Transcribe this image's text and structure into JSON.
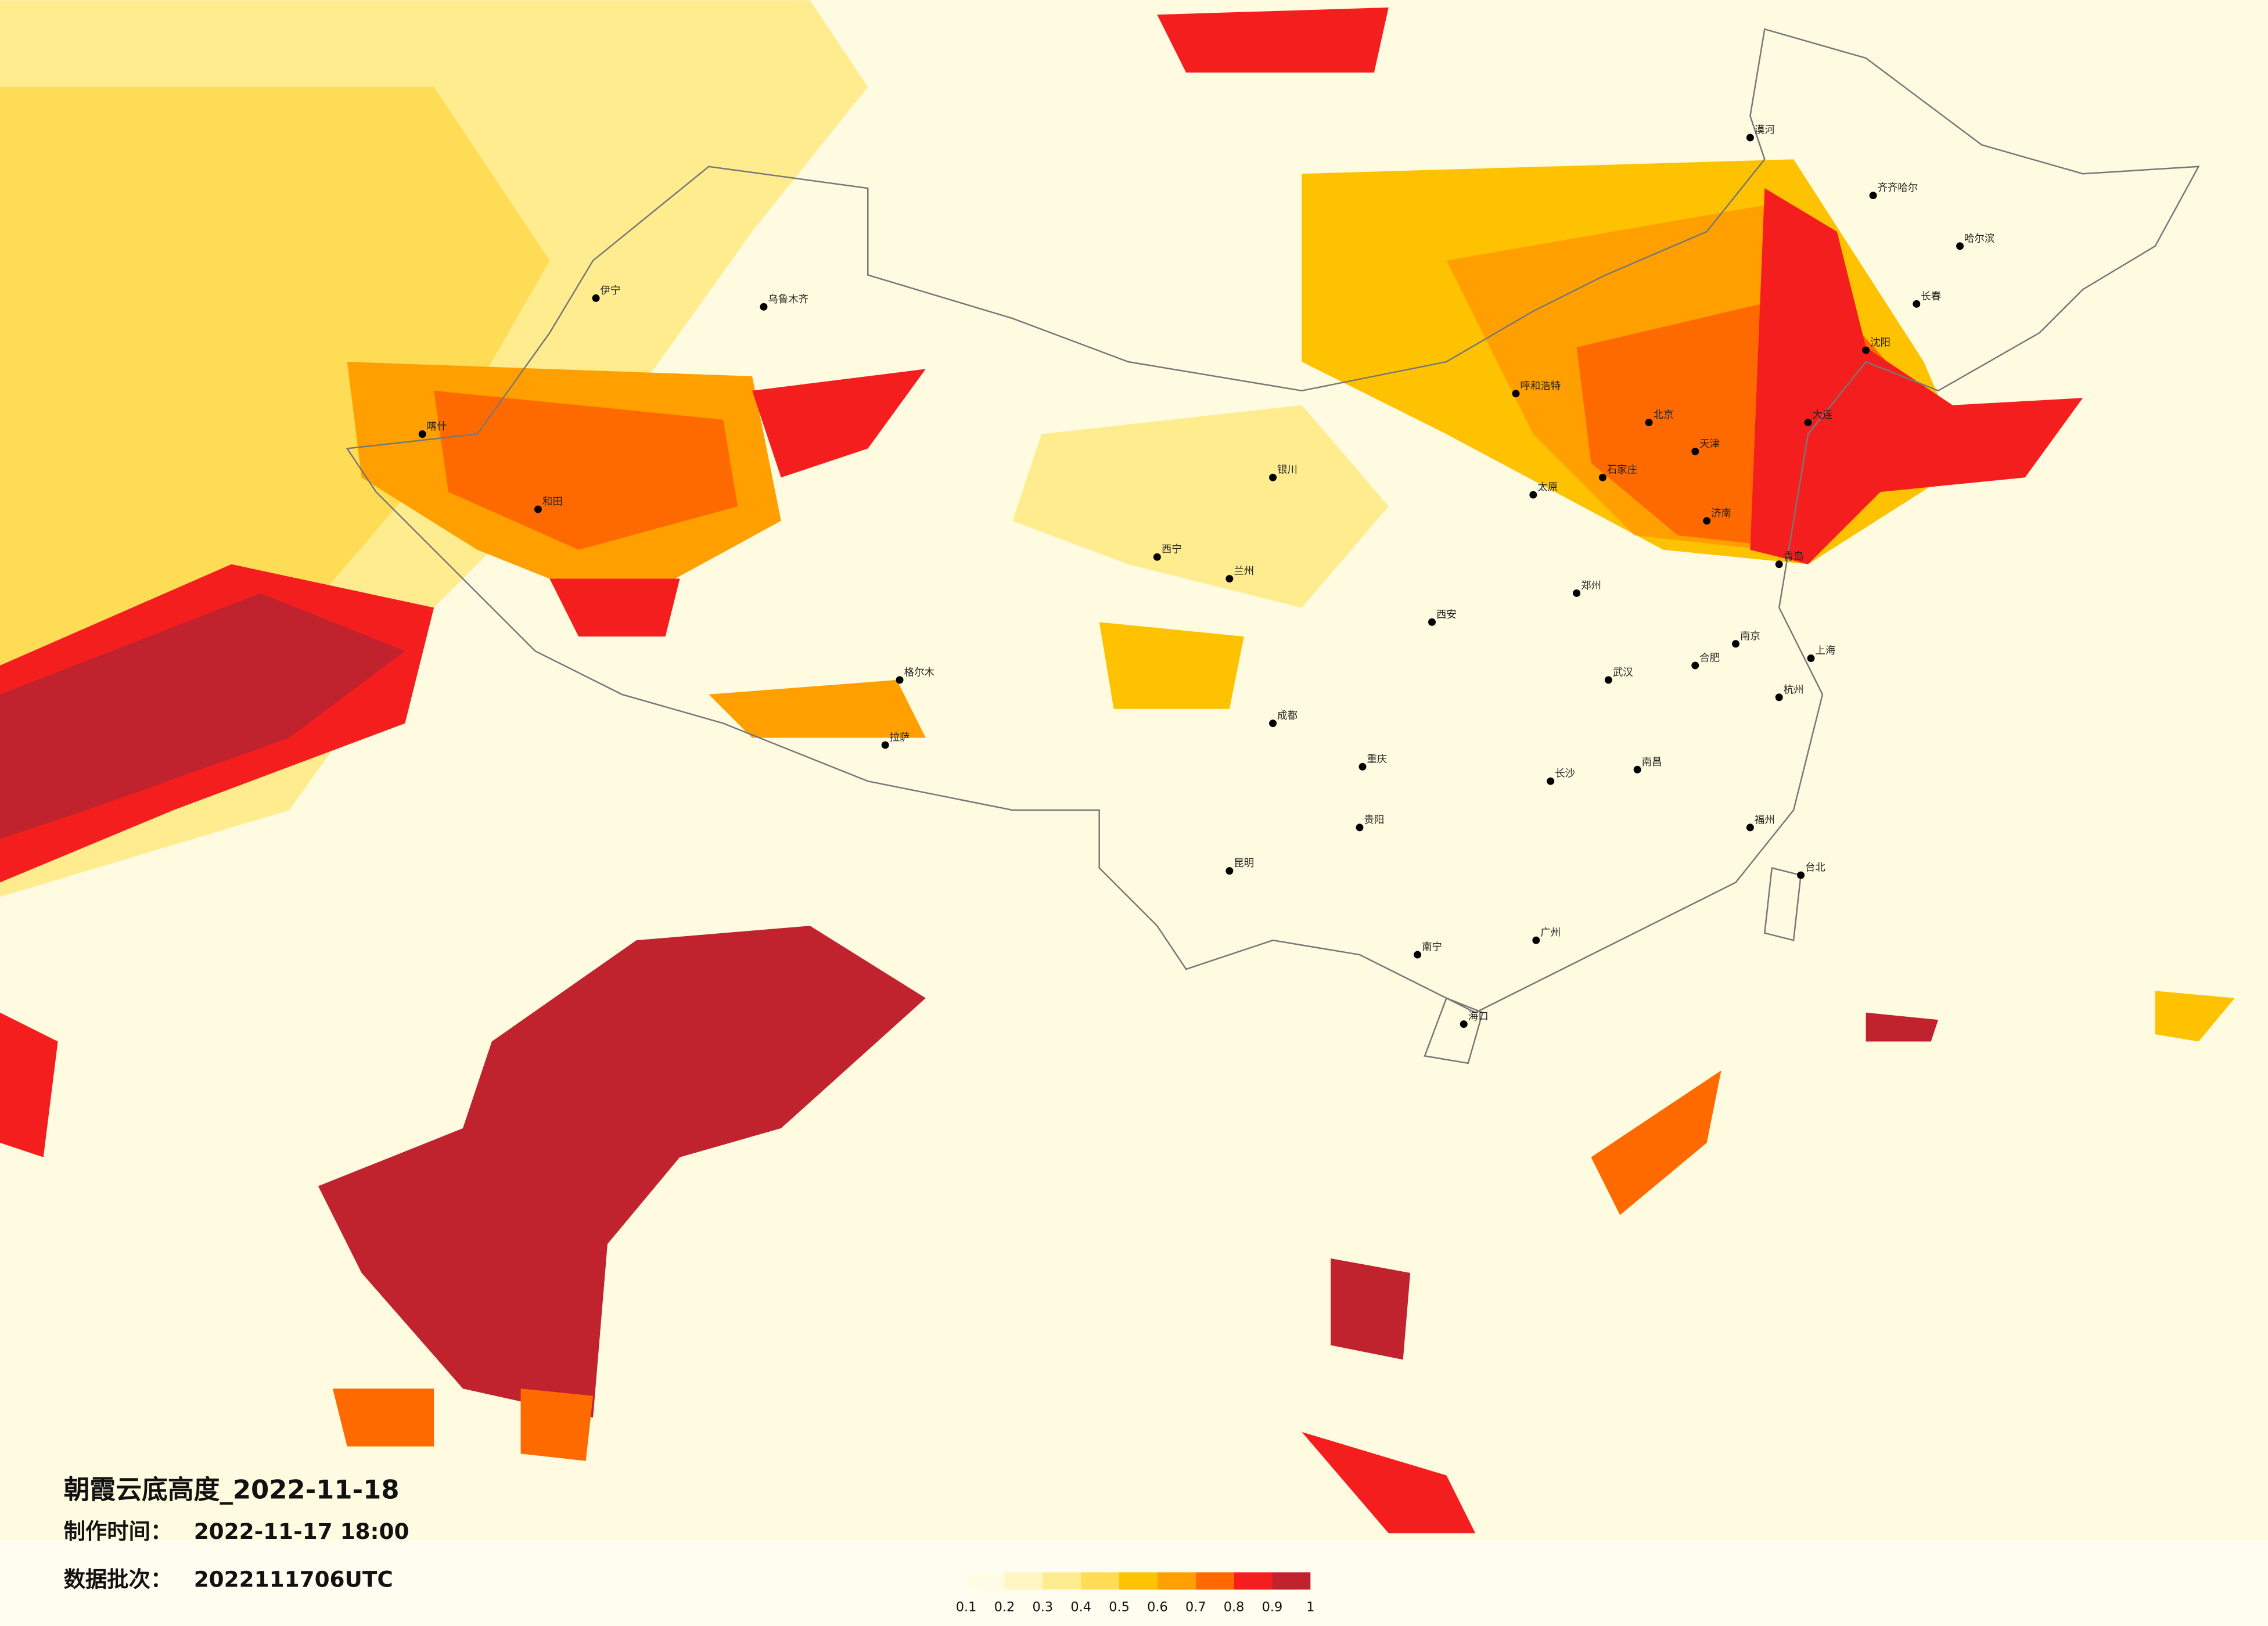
{
  "title": "朝霞云底高度_2022-11-18",
  "made_time": {
    "label": "制作时间：",
    "value": "2022-11-17 18:00"
  },
  "batch": {
    "label": "数据批次：",
    "value": "2022111706UTC"
  },
  "legend": {
    "colors": [
      "#fffde6",
      "#fff6c2",
      "#ffec8e",
      "#ffdc55",
      "#ffc200",
      "#ffa000",
      "#ff6a00",
      "#f51e1e",
      "#c0232d"
    ],
    "ticks": [
      0.1,
      0.2,
      0.3,
      0.4,
      0.5,
      0.6,
      0.7,
      0.8,
      0.9,
      1
    ]
  },
  "cities": [
    "漠河",
    "齐齐哈尔",
    "哈尔滨",
    "长春",
    "沈阳",
    "大连",
    "北京",
    "天津",
    "石家庄",
    "太原",
    "呼和浩特",
    "济南",
    "青岛",
    "郑州",
    "西安",
    "兰州",
    "西宁",
    "银川",
    "乌鲁木齐",
    "伊宁",
    "喀什",
    "和田",
    "格尔木",
    "拉萨",
    "成都",
    "重庆",
    "贵阳",
    "昆明",
    "南宁",
    "广州",
    "海口",
    "长沙",
    "武汉",
    "南昌",
    "合肥",
    "南京",
    "上海",
    "杭州",
    "福州",
    "台北"
  ]
}
